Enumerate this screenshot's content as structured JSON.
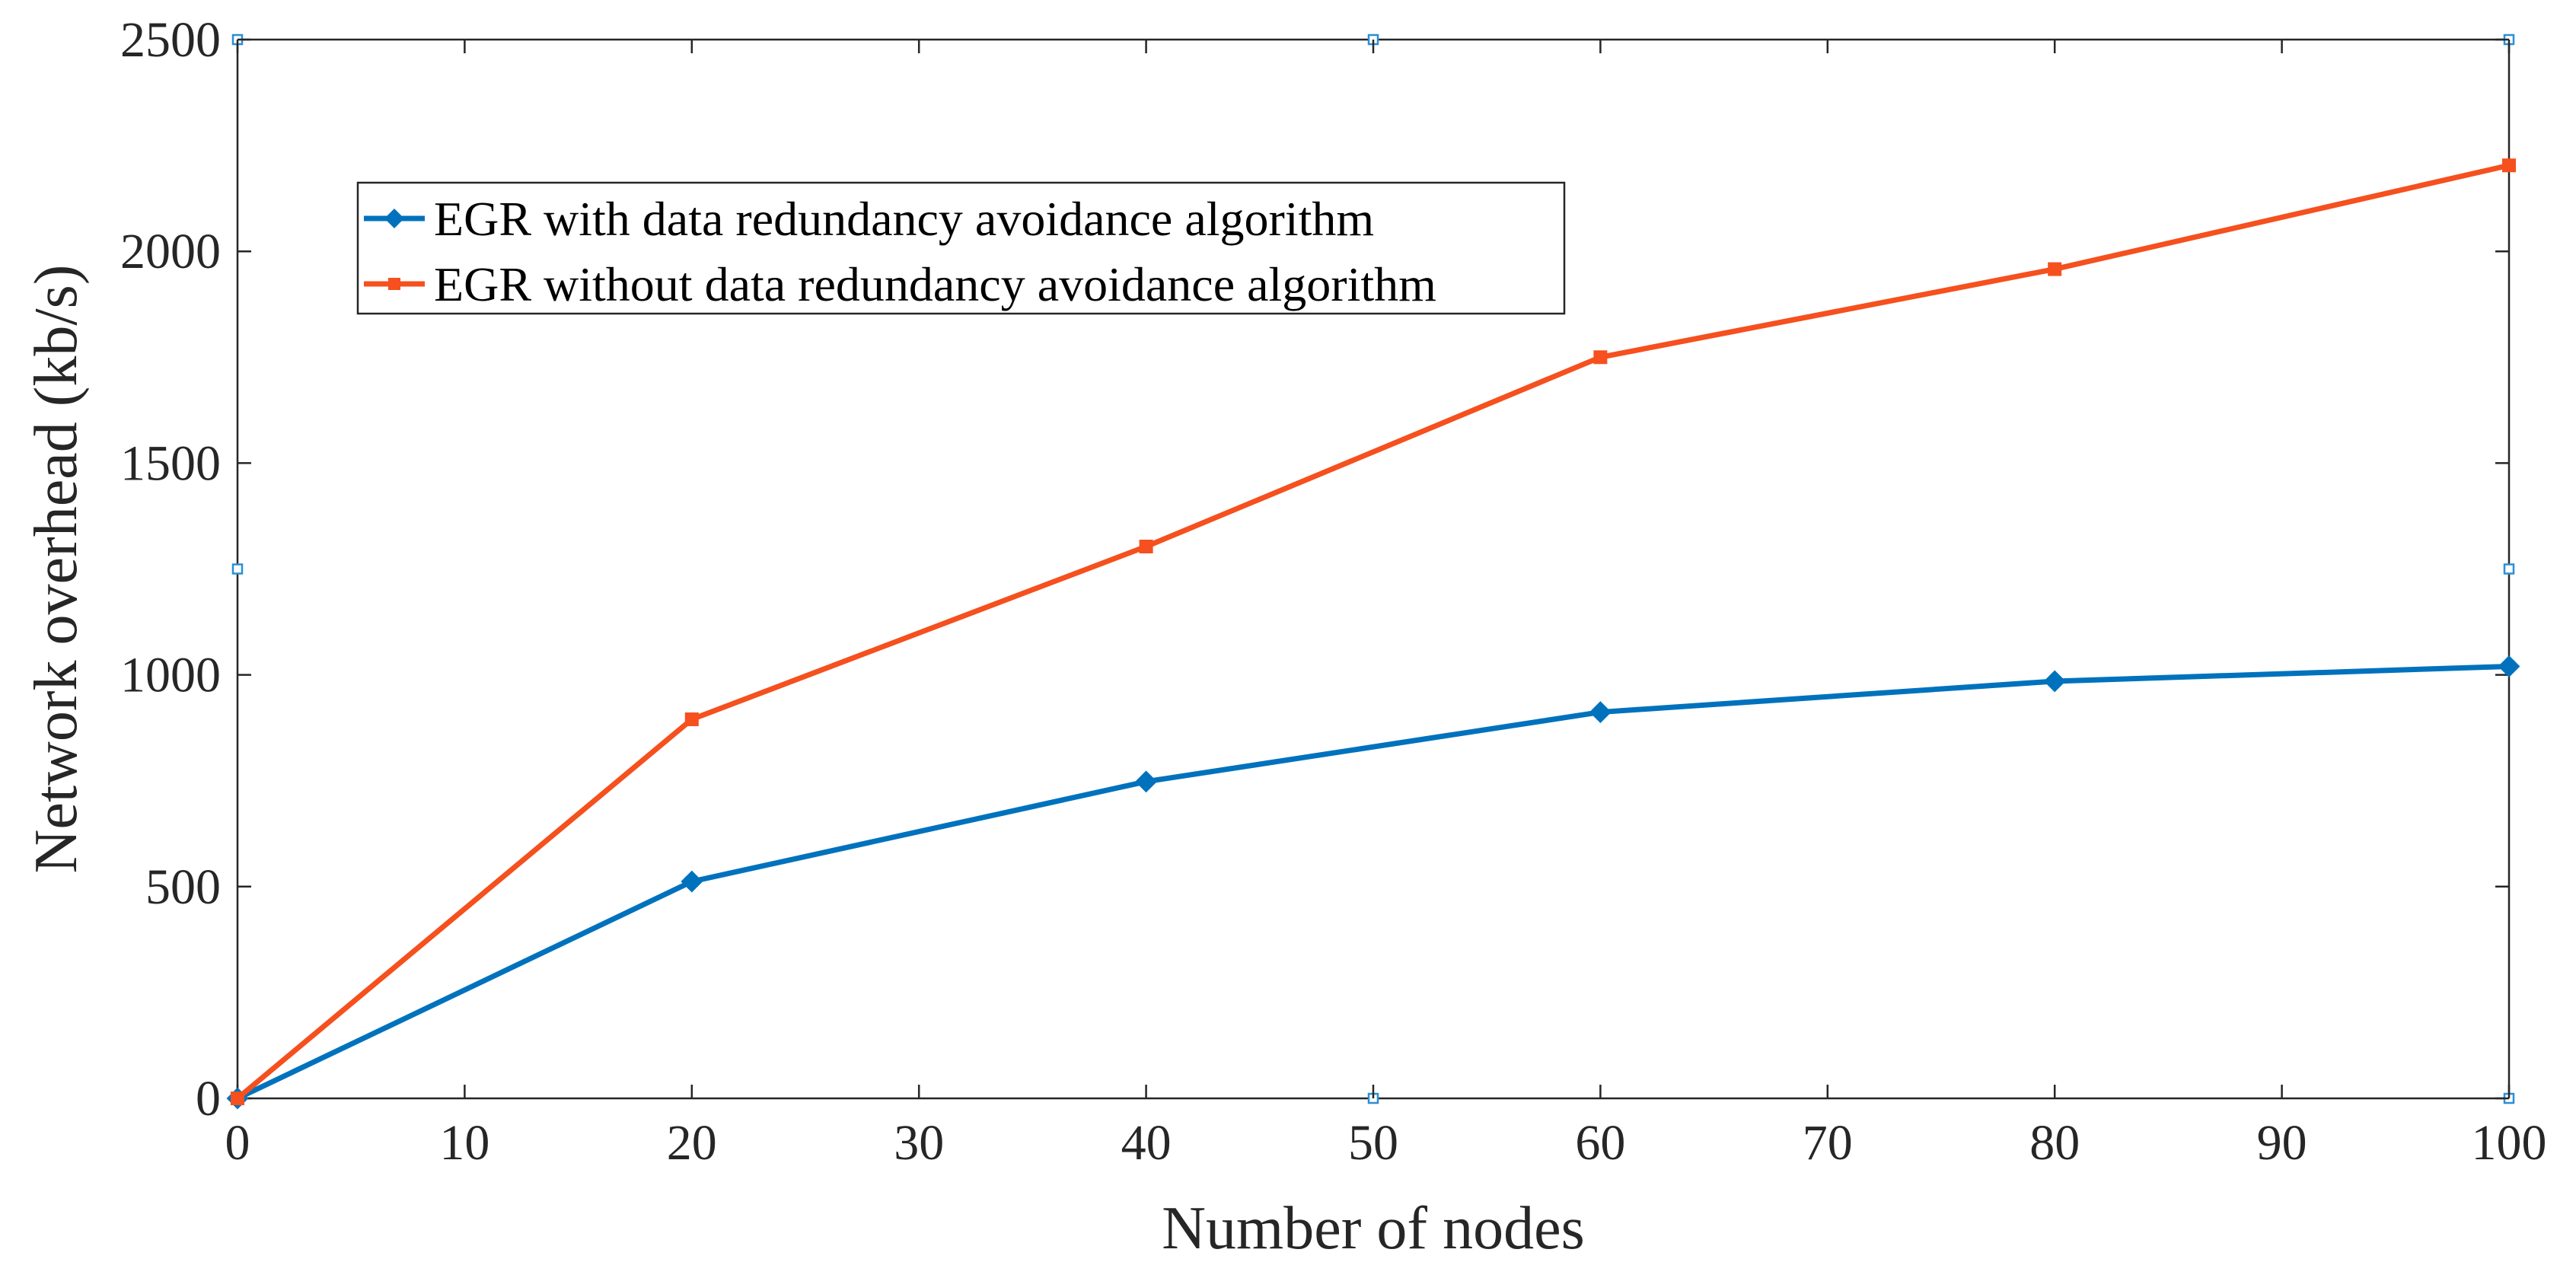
{
  "chart_data": {
    "type": "line",
    "title": "",
    "xlabel": "Number of nodes",
    "ylabel": "Network overhead (kb/s)",
    "xlim": [
      0,
      100
    ],
    "ylim": [
      0,
      2500
    ],
    "xticks": [
      0,
      10,
      20,
      30,
      40,
      50,
      60,
      70,
      80,
      90,
      100
    ],
    "yticks": [
      0,
      500,
      1000,
      1500,
      2000,
      2500
    ],
    "grid": false,
    "legend_position": "upper-left",
    "series": [
      {
        "name": "EGR with data redundancy avoidance algorithm",
        "color": "#0072BD",
        "marker": "diamond",
        "x": [
          0,
          20,
          40,
          60,
          80,
          100
        ],
        "y": [
          0,
          512,
          748,
          912,
          985,
          1020
        ]
      },
      {
        "name": "EGR without data redundancy avoidance algorithm",
        "color": "#F5501E",
        "marker": "square",
        "x": [
          0,
          20,
          40,
          60,
          80,
          100
        ],
        "y": [
          0,
          895,
          1303,
          1750,
          1958,
          2203
        ]
      }
    ]
  }
}
